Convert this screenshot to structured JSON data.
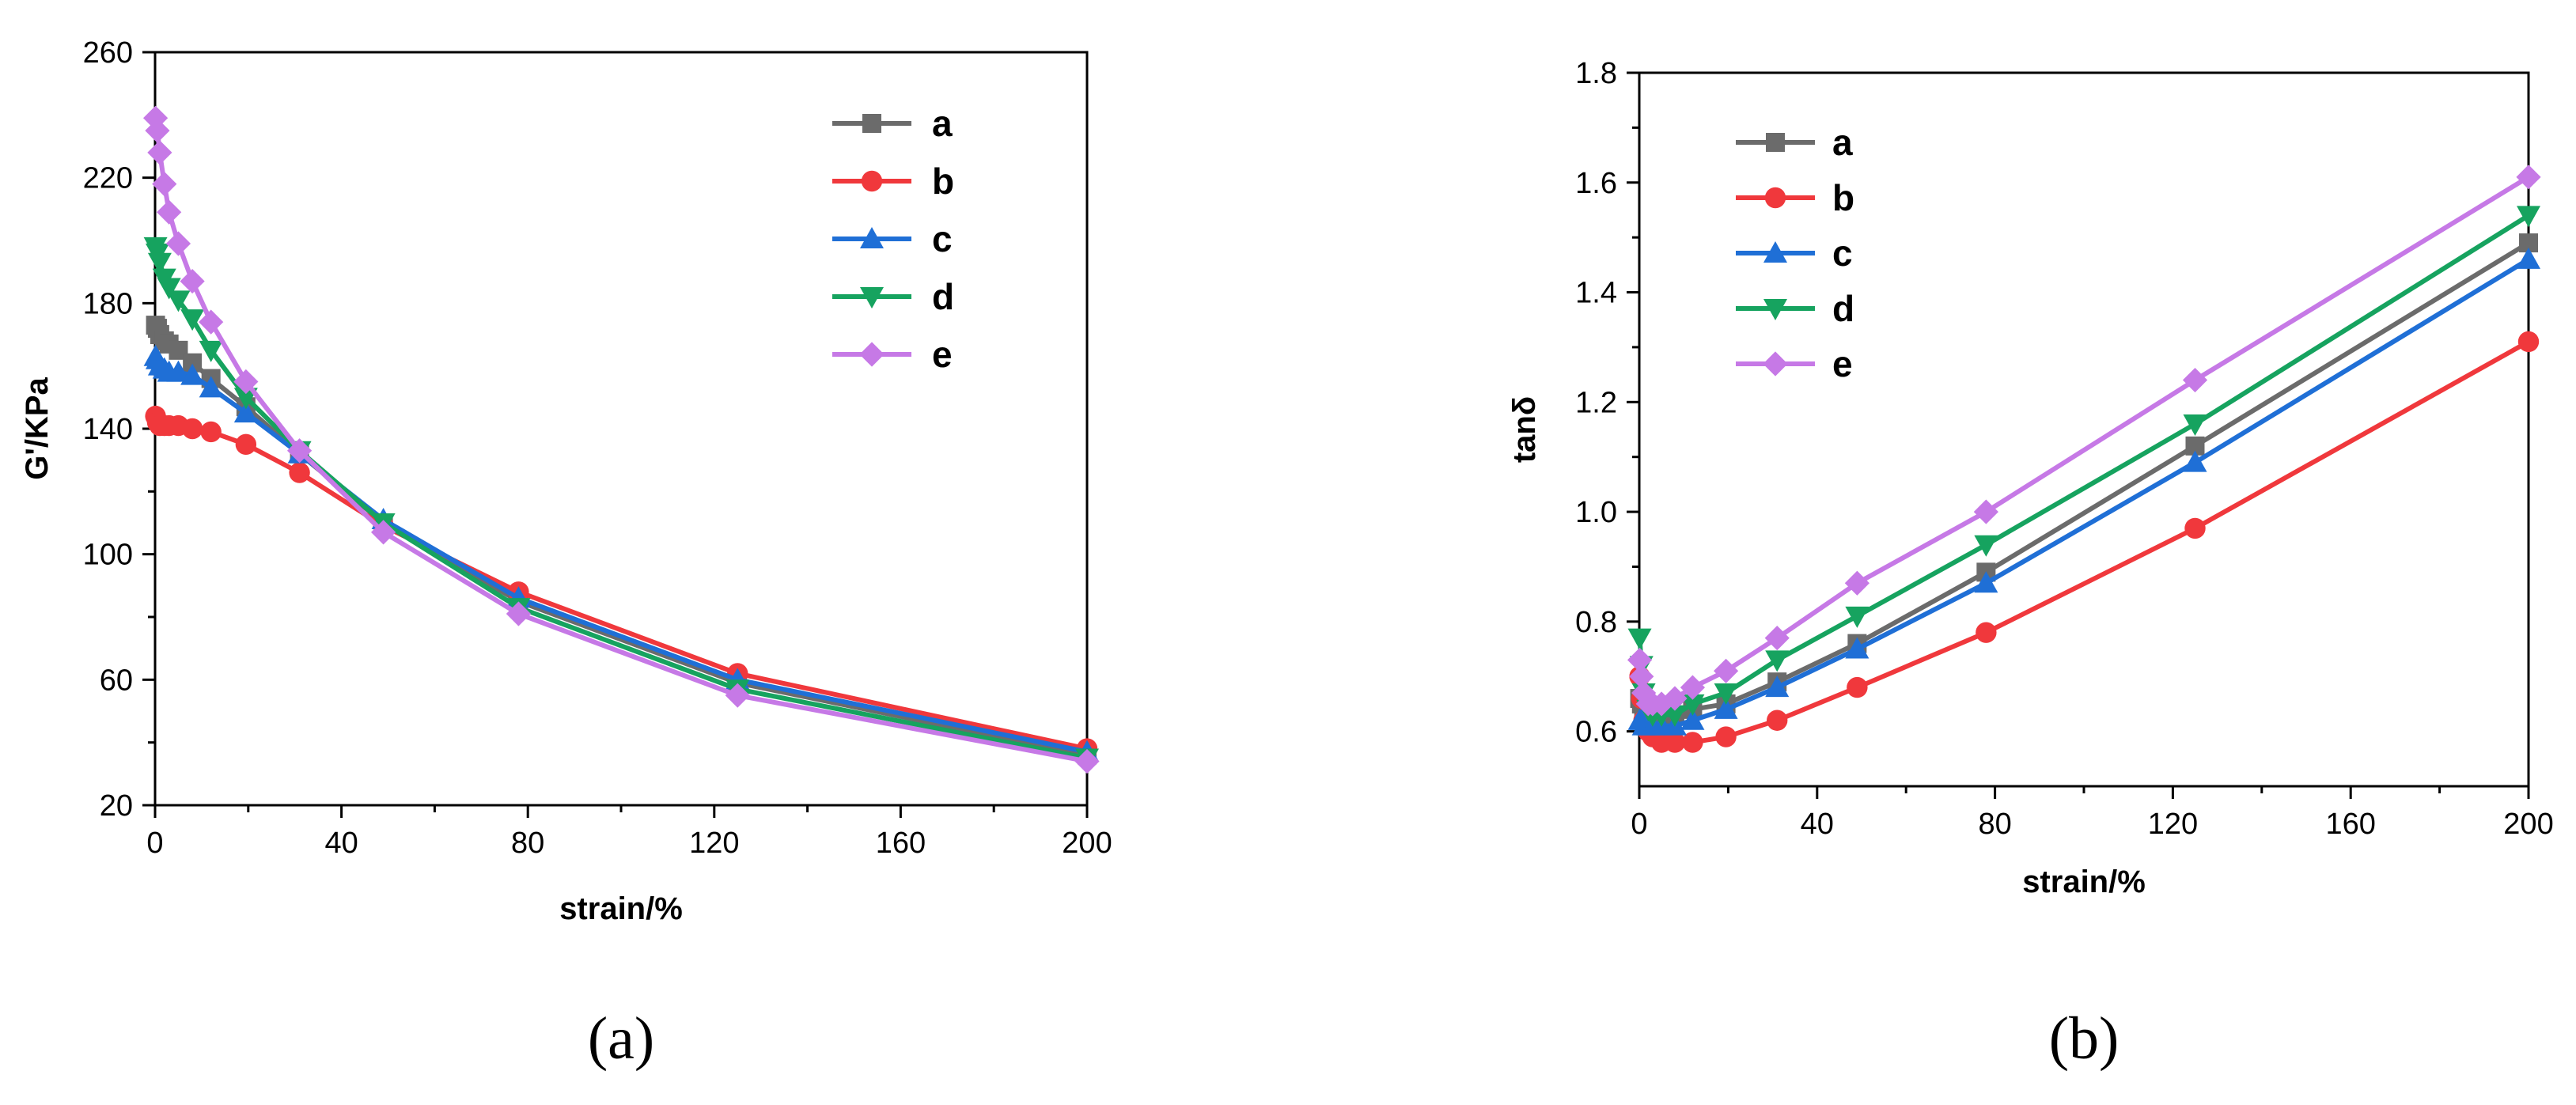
{
  "chart_data": [
    {
      "type": "line",
      "panel_label": "(a)",
      "xlabel": "strain/%",
      "ylabel": "G'/KPa",
      "xlim": [
        0,
        200
      ],
      "ylim": [
        20,
        260
      ],
      "xticks": [
        "0",
        "40",
        "80",
        "120",
        "160",
        "200"
      ],
      "yticks": [
        "20",
        "60",
        "100",
        "140",
        "180",
        "220",
        "260"
      ],
      "legend_position": "top-right",
      "series": [
        {
          "name": "a",
          "color": "#6b6b6b",
          "marker": "square",
          "x": [
            0.1,
            0.5,
            1,
            2,
            3,
            5,
            8,
            12,
            19.5,
            31,
            49,
            78,
            125,
            200
          ],
          "y": [
            173,
            172,
            170,
            168,
            167,
            165,
            161,
            156,
            147,
            132,
            110,
            85,
            59,
            36
          ]
        },
        {
          "name": "b",
          "color": "#f0383c",
          "marker": "circle",
          "x": [
            0.1,
            0.5,
            1,
            2,
            3,
            5,
            8,
            12,
            19.5,
            31,
            49,
            78,
            125,
            200
          ],
          "y": [
            144,
            142,
            141,
            141,
            141,
            141,
            140,
            139,
            135,
            126,
            109,
            88,
            62,
            38
          ]
        },
        {
          "name": "c",
          "color": "#1f6fd6",
          "marker": "triangle-up",
          "x": [
            0.1,
            0.5,
            1,
            2,
            3,
            5,
            8,
            12,
            19.5,
            31,
            49,
            78,
            125,
            200
          ],
          "y": [
            163,
            162,
            160,
            159,
            158,
            158,
            157,
            153,
            145,
            132,
            111,
            86,
            60,
            37
          ]
        },
        {
          "name": "d",
          "color": "#16a35f",
          "marker": "triangle-down",
          "x": [
            0.1,
            0.5,
            1,
            2,
            3,
            5,
            8,
            12,
            19.5,
            31,
            49,
            78,
            125,
            200
          ],
          "y": [
            198,
            196,
            193,
            188,
            185,
            181,
            175,
            165,
            150,
            133,
            110,
            83,
            57,
            35
          ]
        },
        {
          "name": "e",
          "color": "#c679e6",
          "marker": "diamond",
          "x": [
            0.1,
            0.5,
            1,
            2,
            3,
            5,
            8,
            12,
            19.5,
            31,
            49,
            78,
            125,
            200
          ],
          "y": [
            239,
            235,
            228,
            218,
            209,
            199,
            187,
            174,
            155,
            133,
            107,
            81,
            55,
            34
          ]
        }
      ]
    },
    {
      "type": "line",
      "panel_label": "(b)",
      "xlabel": "strain/%",
      "ylabel": "tanδ",
      "xlim": [
        0,
        200
      ],
      "ylim": [
        0.5,
        1.8
      ],
      "xticks": [
        "0",
        "40",
        "80",
        "120",
        "160",
        "200"
      ],
      "yticks": [
        "0.6",
        "0.8",
        "1.0",
        "1.2",
        "1.4",
        "1.6",
        "1.8"
      ],
      "legend_position": "top-left",
      "series": [
        {
          "name": "a",
          "color": "#6b6b6b",
          "marker": "square",
          "x": [
            0.1,
            0.5,
            1,
            2,
            3,
            5,
            8,
            12,
            19.5,
            31,
            49,
            78,
            125,
            200
          ],
          "y": [
            0.66,
            0.65,
            0.64,
            0.63,
            0.63,
            0.63,
            0.63,
            0.64,
            0.65,
            0.69,
            0.76,
            0.89,
            1.12,
            1.49
          ]
        },
        {
          "name": "b",
          "color": "#f0383c",
          "marker": "circle",
          "x": [
            0.1,
            0.5,
            1,
            2,
            3,
            5,
            8,
            12,
            19.5,
            31,
            49,
            78,
            125,
            200
          ],
          "y": [
            0.7,
            0.66,
            0.62,
            0.6,
            0.59,
            0.58,
            0.58,
            0.58,
            0.59,
            0.62,
            0.68,
            0.78,
            0.97,
            1.31
          ]
        },
        {
          "name": "c",
          "color": "#1f6fd6",
          "marker": "triangle-up",
          "x": [
            0.1,
            0.5,
            1,
            2,
            3,
            5,
            8,
            12,
            19.5,
            31,
            49,
            78,
            125,
            200
          ],
          "y": [
            0.62,
            0.62,
            0.61,
            0.61,
            0.61,
            0.61,
            0.61,
            0.62,
            0.64,
            0.68,
            0.75,
            0.87,
            1.09,
            1.46
          ]
        },
        {
          "name": "d",
          "color": "#16a35f",
          "marker": "triangle-down",
          "x": [
            0.1,
            0.5,
            1,
            2,
            3,
            5,
            8,
            12,
            19.5,
            31,
            49,
            78,
            125,
            200
          ],
          "y": [
            0.77,
            0.72,
            0.67,
            0.64,
            0.63,
            0.63,
            0.63,
            0.65,
            0.67,
            0.73,
            0.81,
            0.94,
            1.16,
            1.54
          ]
        },
        {
          "name": "e",
          "color": "#c679e6",
          "marker": "diamond",
          "x": [
            0.1,
            0.5,
            1,
            2,
            3,
            5,
            8,
            12,
            19.5,
            31,
            49,
            78,
            125,
            200
          ],
          "y": [
            0.73,
            0.7,
            0.67,
            0.65,
            0.65,
            0.65,
            0.66,
            0.68,
            0.71,
            0.77,
            0.87,
            1.0,
            1.24,
            1.61
          ]
        }
      ]
    }
  ]
}
